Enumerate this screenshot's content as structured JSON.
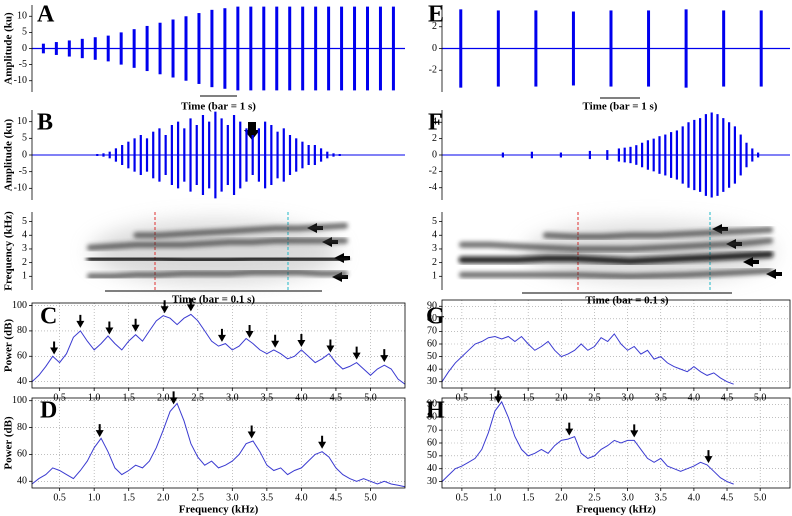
{
  "chart_data": [
    {
      "type": "pulse-train",
      "panel": "A",
      "ylabel": "Amplitude (ku)",
      "ylim": [
        -13.5,
        13.5
      ],
      "yticks": [
        -10,
        -5,
        0,
        5,
        10
      ],
      "color": "#0000ee",
      "scale_bar": "Time (bar = 1 s)",
      "values": [
        1.5,
        2,
        2.5,
        3,
        3.5,
        4,
        5,
        6,
        7,
        8,
        9,
        10,
        11,
        12,
        12.5,
        13,
        13,
        13,
        13,
        13,
        13,
        13,
        13,
        13,
        13,
        13,
        13,
        13
      ]
    },
    {
      "type": "pulse-train",
      "panel": "E",
      "ylim": [
        -4,
        4
      ],
      "yticks": [
        -2,
        0,
        2
      ],
      "color": "#0000ee",
      "scale_bar": "Time (bar = 1 s)",
      "values": [
        3.6,
        3.5,
        3.5,
        3.4,
        3.5,
        3.5,
        3.6,
        3.5,
        3.5
      ]
    },
    {
      "type": "waveform",
      "panel": "B",
      "ylabel": "Amplitude (ku)",
      "ylim": [
        -13.5,
        13.5
      ],
      "yticks": [
        -10,
        -5,
        0,
        5,
        10
      ],
      "color": "#0000ee",
      "values": [
        0,
        0,
        0,
        0,
        0,
        0,
        0,
        0,
        0,
        0,
        0.3,
        0.5,
        1,
        2,
        3,
        4,
        5,
        6,
        5,
        7,
        8,
        6,
        9,
        10,
        8,
        11,
        9,
        12,
        10,
        13,
        11,
        9,
        12,
        10,
        8,
        6,
        8,
        10,
        9,
        7,
        8,
        6,
        5,
        4,
        3,
        3,
        2,
        1,
        0.5,
        0.3,
        0,
        0,
        0,
        0,
        0,
        0,
        0,
        0,
        0,
        0
      ]
    },
    {
      "type": "waveform",
      "panel": "F",
      "ylim": [
        -5.5,
        5.5
      ],
      "yticks": [
        -4,
        -2,
        0,
        2,
        4
      ],
      "color": "#0000ee",
      "values": [
        0,
        0,
        0,
        0,
        0,
        0,
        0,
        0,
        0,
        0,
        0.3,
        0,
        0,
        0,
        0,
        0.4,
        0,
        0,
        0,
        0,
        0.3,
        0,
        0,
        0,
        0,
        0.5,
        0,
        0,
        0.6,
        0,
        0.8,
        0.9,
        1,
        1.2,
        1.5,
        1.8,
        2,
        2.3,
        2.5,
        2.8,
        3,
        3.5,
        4,
        4.3,
        4.5,
        5,
        5.2,
        5,
        4.5,
        4,
        3.5,
        2.5,
        1.5,
        0.8,
        0.3,
        0,
        0,
        0,
        0,
        0
      ]
    },
    {
      "type": "spectrogram",
      "ylabel": "Frequency (kHz)",
      "ylim": [
        0,
        5.7
      ],
      "yticks": [
        1,
        2,
        3,
        4,
        5
      ],
      "scale_bar": "Time (bar = 0.1 s)",
      "tracks": [
        [
          1.0,
          1.0,
          1.1,
          1.1,
          1.2,
          1.2,
          1.2,
          1.3,
          1.3,
          1.3,
          1.2,
          1.2
        ],
        [
          2.3,
          2.3,
          2.3,
          2.3,
          2.2,
          2.2,
          2.2,
          2.3,
          2.3,
          2.3,
          2.3,
          2.3
        ],
        [
          3.1,
          3.2,
          3.3,
          3.3,
          3.3,
          3.4,
          3.5,
          3.5,
          3.6,
          3.6,
          3.6,
          3.6
        ],
        [
          null,
          null,
          4.0,
          4.0,
          4.1,
          4.2,
          4.3,
          4.4,
          4.5,
          4.5,
          4.6,
          4.7
        ]
      ]
    },
    {
      "type": "spectrogram",
      "ylim": [
        0,
        5.7
      ],
      "yticks": [
        1,
        2,
        3,
        4,
        5
      ],
      "scale_bar": "Time (bar = 0.1 s)",
      "tracks": [
        [
          1.1,
          1.1,
          1.1,
          1.1,
          1.1,
          1.05,
          1.0,
          1.05,
          1.1,
          1.2,
          1.3,
          1.4
        ],
        [
          2.2,
          2.2,
          2.2,
          2.3,
          2.3,
          2.2,
          2.1,
          2.2,
          2.3,
          2.4,
          2.5,
          2.6
        ],
        [
          3.3,
          3.3,
          3.2,
          3.1,
          3.0,
          3.0,
          3.0,
          3.1,
          3.2,
          3.3,
          3.4,
          3.6
        ],
        [
          null,
          null,
          null,
          4.0,
          3.9,
          3.9,
          4.0,
          4.0,
          4.1,
          4.2,
          4.3,
          4.4
        ]
      ]
    },
    {
      "type": "spectrum",
      "panel": "C",
      "ylabel": "Power (dB)",
      "ylim": [
        35,
        102
      ],
      "yticks": [
        40,
        60,
        80,
        100
      ],
      "xlim": [
        0.1,
        5.5
      ],
      "xticks": [
        0.5,
        {
          "value": 1,
          "label": "1.0"
        },
        1.5,
        {
          "value": 2,
          "label": "2.0"
        },
        2.5,
        {
          "value": 3,
          "label": "3.0"
        },
        3.5,
        {
          "value": 4,
          "label": "4.0"
        },
        4.5,
        {
          "value": 5,
          "label": "5.0"
        }
      ],
      "grid": true,
      "color": "#3b3bd1",
      "x": [
        0.1,
        0.2,
        0.3,
        0.4,
        0.5,
        0.6,
        0.7,
        0.8,
        0.9,
        1.0,
        1.1,
        1.2,
        1.3,
        1.4,
        1.5,
        1.6,
        1.7,
        1.8,
        1.9,
        2.0,
        2.1,
        2.2,
        2.3,
        2.4,
        2.5,
        2.6,
        2.7,
        2.8,
        2.9,
        3.0,
        3.1,
        3.2,
        3.3,
        3.4,
        3.5,
        3.6,
        3.7,
        3.8,
        3.9,
        4.0,
        4.1,
        4.2,
        4.3,
        4.4,
        4.5,
        4.6,
        4.7,
        4.8,
        4.9,
        5.0,
        5.1,
        5.2,
        5.3,
        5.4,
        5.5
      ],
      "values": [
        40,
        45,
        52,
        60,
        55,
        62,
        75,
        80,
        72,
        65,
        70,
        76,
        70,
        65,
        72,
        77,
        72,
        80,
        88,
        92,
        90,
        85,
        90,
        93,
        88,
        80,
        72,
        68,
        70,
        65,
        68,
        74,
        70,
        65,
        62,
        65,
        62,
        58,
        60,
        65,
        60,
        55,
        58,
        62,
        55,
        50,
        52,
        55,
        50,
        45,
        50,
        53,
        50,
        42,
        38
      ],
      "arrows": [
        0.42,
        0.8,
        1.22,
        1.6,
        2.02,
        2.4,
        2.85,
        3.25,
        3.62,
        4.0,
        4.42,
        4.8,
        5.2
      ]
    },
    {
      "type": "spectrum",
      "panel": "G",
      "ylim": [
        25,
        95
      ],
      "yticks": [
        30,
        40,
        50,
        60,
        70,
        80,
        90
      ],
      "xlim": [
        0.2,
        5.45
      ],
      "xticks": [
        0.5,
        {
          "value": 1,
          "label": "1.0"
        },
        1.5,
        {
          "value": 2,
          "label": "2.0"
        },
        2.5,
        {
          "value": 3,
          "label": "3.0"
        },
        3.5,
        {
          "value": 4,
          "label": "4.0"
        },
        4.5,
        {
          "value": 5,
          "label": "5.0"
        }
      ],
      "grid": true,
      "color": "#3b3bd1",
      "x": [
        0.2,
        0.3,
        0.4,
        0.5,
        0.6,
        0.7,
        0.8,
        0.9,
        1.0,
        1.1,
        1.2,
        1.3,
        1.4,
        1.5,
        1.6,
        1.7,
        1.8,
        1.9,
        2.0,
        2.1,
        2.2,
        2.3,
        2.4,
        2.5,
        2.6,
        2.7,
        2.8,
        2.9,
        3.0,
        3.1,
        3.2,
        3.3,
        3.4,
        3.5,
        3.6,
        3.7,
        3.8,
        3.9,
        4.0,
        4.1,
        4.2,
        4.3,
        4.4,
        4.5,
        4.6
      ],
      "values": [
        30,
        38,
        45,
        50,
        55,
        60,
        62,
        65,
        66,
        64,
        66,
        62,
        66,
        60,
        55,
        58,
        62,
        55,
        50,
        52,
        55,
        60,
        55,
        58,
        65,
        62,
        68,
        60,
        55,
        58,
        52,
        55,
        48,
        50,
        45,
        42,
        40,
        38,
        42,
        38,
        35,
        37,
        33,
        30,
        28
      ]
    },
    {
      "type": "spectrum",
      "panel": "D",
      "ylabel": "Power (dB)",
      "xlabel": "Frequency (kHz)",
      "ylim": [
        35,
        102
      ],
      "yticks": [
        40,
        60,
        80,
        100
      ],
      "xlim": [
        0.1,
        5.5
      ],
      "xticks": [
        0.5,
        {
          "value": 1,
          "label": "1.0"
        },
        1.5,
        {
          "value": 2,
          "label": "2.0"
        },
        2.5,
        {
          "value": 3,
          "label": "3.0"
        },
        3.5,
        {
          "value": 4,
          "label": "4.0"
        },
        4.5,
        {
          "value": 5,
          "label": "5.0"
        }
      ],
      "grid": true,
      "color": "#3b3bd1",
      "x": [
        0.1,
        0.2,
        0.3,
        0.4,
        0.5,
        0.6,
        0.7,
        0.8,
        0.9,
        1.0,
        1.1,
        1.2,
        1.3,
        1.4,
        1.5,
        1.6,
        1.7,
        1.8,
        1.9,
        2.0,
        2.1,
        2.2,
        2.3,
        2.4,
        2.5,
        2.6,
        2.7,
        2.8,
        2.9,
        3.0,
        3.1,
        3.2,
        3.3,
        3.4,
        3.5,
        3.6,
        3.7,
        3.8,
        3.9,
        4.0,
        4.1,
        4.2,
        4.3,
        4.4,
        4.5,
        4.6,
        4.7,
        4.8,
        4.9,
        5.0,
        5.1,
        5.2,
        5.3,
        5.4,
        5.5
      ],
      "values": [
        38,
        42,
        45,
        50,
        48,
        45,
        42,
        48,
        55,
        65,
        72,
        62,
        50,
        45,
        48,
        52,
        50,
        55,
        65,
        78,
        92,
        98,
        85,
        68,
        58,
        52,
        55,
        50,
        52,
        55,
        60,
        68,
        70,
        62,
        52,
        48,
        50,
        45,
        48,
        50,
        55,
        60,
        62,
        58,
        50,
        45,
        42,
        40,
        42,
        40,
        38,
        40,
        38,
        37,
        36
      ],
      "arrows": [
        1.08,
        2.15,
        3.28,
        4.3
      ]
    },
    {
      "type": "spectrum",
      "panel": "H",
      "xlabel": "Frequency (kHz)",
      "ylim": [
        25,
        95
      ],
      "yticks": [
        30,
        40,
        50,
        60,
        70,
        80,
        90
      ],
      "xlim": [
        0.2,
        5.45
      ],
      "xticks": [
        0.5,
        {
          "value": 1,
          "label": "1.0"
        },
        1.5,
        {
          "value": 2,
          "label": "2.0"
        },
        2.5,
        {
          "value": 3,
          "label": "3.0"
        },
        3.5,
        {
          "value": 4,
          "label": "4.0"
        },
        4.5,
        {
          "value": 5,
          "label": "5.0"
        }
      ],
      "grid": true,
      "color": "#3b3bd1",
      "x": [
        0.2,
        0.3,
        0.4,
        0.5,
        0.6,
        0.7,
        0.8,
        0.9,
        1.0,
        1.1,
        1.2,
        1.3,
        1.4,
        1.5,
        1.6,
        1.7,
        1.8,
        1.9,
        2.0,
        2.1,
        2.2,
        2.3,
        2.4,
        2.5,
        2.6,
        2.7,
        2.8,
        2.9,
        3.0,
        3.1,
        3.2,
        3.3,
        3.4,
        3.5,
        3.6,
        3.7,
        3.8,
        3.9,
        4.0,
        4.1,
        4.2,
        4.3,
        4.4,
        4.5,
        4.6
      ],
      "values": [
        30,
        35,
        40,
        42,
        45,
        48,
        55,
        68,
        85,
        92,
        80,
        65,
        55,
        50,
        52,
        55,
        52,
        58,
        62,
        63,
        65,
        52,
        48,
        50,
        55,
        58,
        62,
        60,
        62,
        62,
        55,
        48,
        45,
        48,
        42,
        40,
        38,
        40,
        42,
        45,
        43,
        38,
        33,
        30,
        28
      ],
      "arrows": [
        1.05,
        2.12,
        3.1,
        4.22
      ]
    }
  ]
}
